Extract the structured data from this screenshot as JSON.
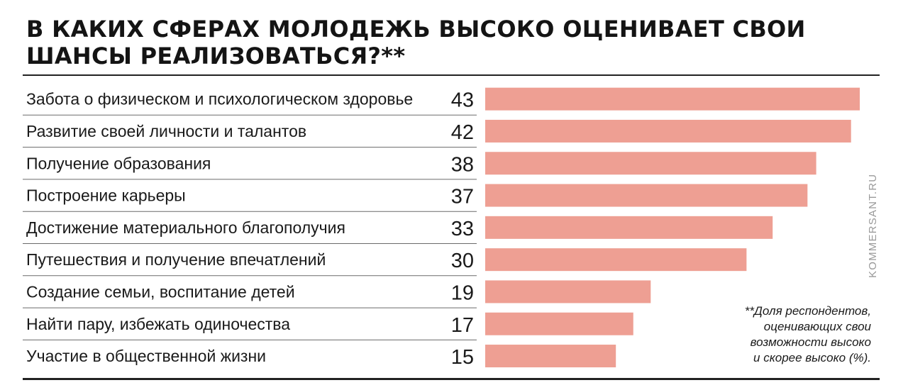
{
  "header": {
    "title": "В КАКИХ СФЕРАХ МОЛОДЕЖЬ ВЫСОКО ОЦЕНИВАЕТ СВОИ ШАНСЫ РЕАЛИЗОВАТЬСЯ?**"
  },
  "watermark": "KOMMERSANT.RU",
  "footnote": {
    "lines": [
      "**Доля респондентов,",
      "оценивающих свои",
      "возможности высоко",
      "и скорее высоко (%)."
    ]
  },
  "colors": {
    "bar": "#ee9f93",
    "text": "#1a1a1a",
    "rule": "#222222"
  },
  "chart_data": {
    "type": "bar",
    "orientation": "horizontal",
    "title": "В КАКИХ СФЕРАХ МОЛОДЕЖЬ ВЫСОКО ОЦЕНИВАЕТ СВОИ ШАНСЫ РЕАЛИЗОВАТЬСЯ?**",
    "xlabel": "",
    "ylabel": "",
    "xlim": [
      0,
      43
    ],
    "grid": false,
    "legend": "none",
    "categories": [
      "Забота о физическом и психологическом здоровье",
      "Развитие своей личности и талантов",
      "Получение образования",
      "Построение карьеры",
      "Достижение материального благополучия",
      "Путешествия и получение впечатлений",
      "Создание семьи, воспитание детей",
      "Найти пару, избежать одиночества",
      "Участие в общественной жизни"
    ],
    "values": [
      43,
      42,
      38,
      37,
      33,
      30,
      19,
      17,
      15
    ]
  }
}
